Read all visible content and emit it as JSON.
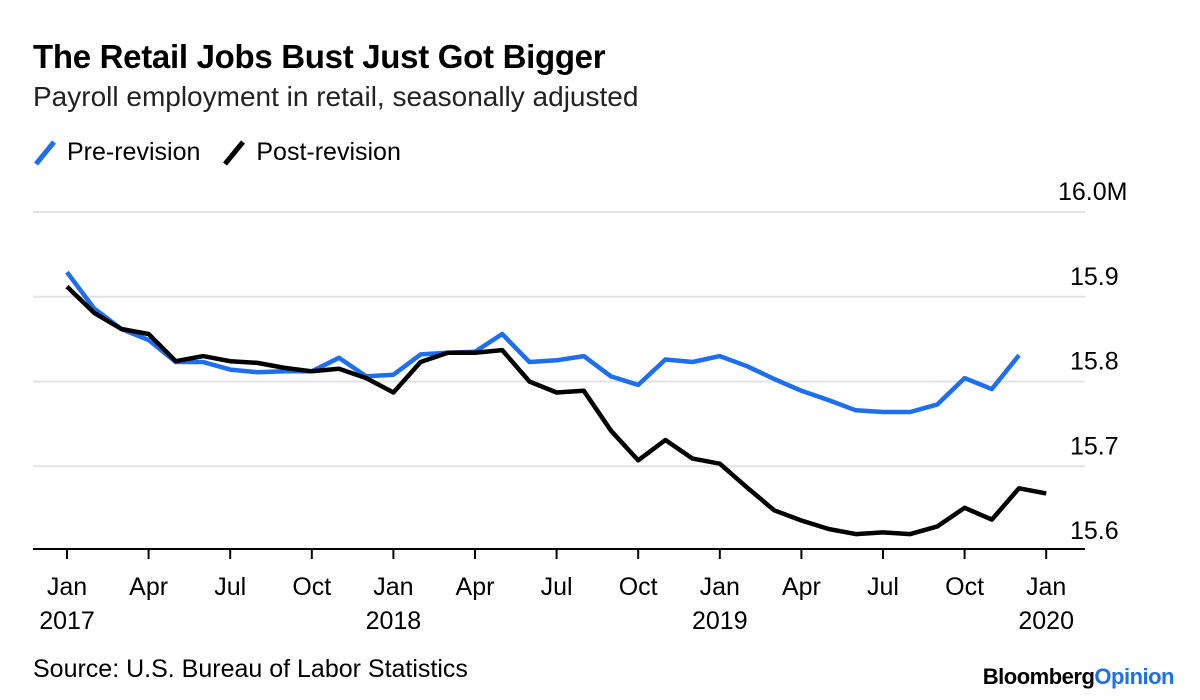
{
  "chart_data": {
    "type": "line",
    "title": "The Retail Jobs Bust Just Got Bigger",
    "subtitle": "Payroll employment in retail, seasonally adjusted",
    "source": "Source: U.S. Bureau of Labor Statistics",
    "brand": {
      "part1": "Bloomberg",
      "part2": "Opinion"
    },
    "ylim": [
      15.6,
      16.0
    ],
    "y_ticks": [
      {
        "value": 16.0,
        "label": "16.0M"
      },
      {
        "value": 15.9,
        "label": "15.9"
      },
      {
        "value": 15.8,
        "label": "15.8"
      },
      {
        "value": 15.7,
        "label": "15.7"
      },
      {
        "value": 15.6,
        "label": "15.6"
      }
    ],
    "x_ticks": [
      {
        "month": 0,
        "label": "Jan",
        "year": "2017"
      },
      {
        "month": 3,
        "label": "Apr",
        "year": ""
      },
      {
        "month": 6,
        "label": "Jul",
        "year": ""
      },
      {
        "month": 9,
        "label": "Oct",
        "year": ""
      },
      {
        "month": 12,
        "label": "Jan",
        "year": "2018"
      },
      {
        "month": 15,
        "label": "Apr",
        "year": ""
      },
      {
        "month": 18,
        "label": "Jul",
        "year": ""
      },
      {
        "month": 21,
        "label": "Oct",
        "year": ""
      },
      {
        "month": 24,
        "label": "Jan",
        "year": "2019"
      },
      {
        "month": 27,
        "label": "Apr",
        "year": ""
      },
      {
        "month": 30,
        "label": "Jul",
        "year": ""
      },
      {
        "month": 33,
        "label": "Oct",
        "year": ""
      },
      {
        "month": 36,
        "label": "Jan",
        "year": "2020"
      }
    ],
    "x": [
      "2017-01",
      "2017-02",
      "2017-03",
      "2017-04",
      "2017-05",
      "2017-06",
      "2017-07",
      "2017-08",
      "2017-09",
      "2017-10",
      "2017-11",
      "2017-12",
      "2018-01",
      "2018-02",
      "2018-03",
      "2018-04",
      "2018-05",
      "2018-06",
      "2018-07",
      "2018-08",
      "2018-09",
      "2018-10",
      "2018-11",
      "2018-12",
      "2019-01",
      "2019-02",
      "2019-03",
      "2019-04",
      "2019-05",
      "2019-06",
      "2019-07",
      "2019-08",
      "2019-09",
      "2019-10",
      "2019-11",
      "2019-12",
      "2020-01"
    ],
    "series": [
      {
        "name": "Pre-revision",
        "color": "#1e6ef0",
        "values": [
          15.929,
          15.886,
          15.862,
          15.849,
          15.823,
          15.823,
          15.814,
          15.811,
          15.812,
          15.812,
          15.828,
          15.806,
          15.808,
          15.832,
          15.834,
          15.835,
          15.856,
          15.823,
          15.825,
          15.83,
          15.806,
          15.796,
          15.826,
          15.823,
          15.83,
          15.818,
          15.803,
          15.789,
          15.778,
          15.766,
          15.764,
          15.764,
          15.773,
          15.804,
          15.791,
          15.831,
          null
        ]
      },
      {
        "name": "Post-revision",
        "color": "#000000",
        "values": [
          15.912,
          15.881,
          15.862,
          15.856,
          15.824,
          15.83,
          15.824,
          15.822,
          15.816,
          15.812,
          15.815,
          15.804,
          15.787,
          15.823,
          15.834,
          15.834,
          15.837,
          15.8,
          15.787,
          15.789,
          15.742,
          15.707,
          15.731,
          15.709,
          15.703,
          15.675,
          15.648,
          15.636,
          15.626,
          15.62,
          15.622,
          15.62,
          15.629,
          15.651,
          15.637,
          15.674,
          15.668
        ]
      }
    ]
  }
}
